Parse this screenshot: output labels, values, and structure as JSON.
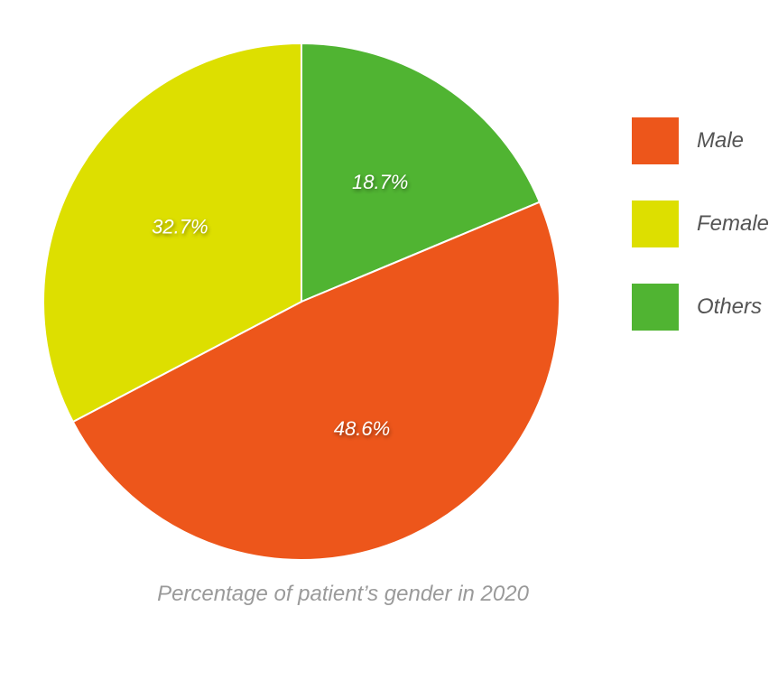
{
  "chart_data": {
    "type": "pie",
    "title": "",
    "caption": "Percentage of patient’s gender in 2020",
    "legend_position": "right",
    "slices": [
      {
        "name": "Male",
        "value": 48.6,
        "label": "48.6%",
        "color": "#ED561B"
      },
      {
        "name": "Female",
        "value": 32.7,
        "label": "32.7%",
        "color": "#DDDF00"
      },
      {
        "name": "Others",
        "value": 18.7,
        "label": "18.7%",
        "color": "#50B432"
      }
    ]
  }
}
